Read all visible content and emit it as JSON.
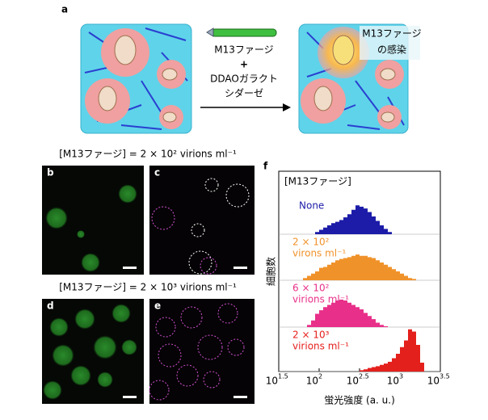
{
  "panel_a": {
    "letter": "a",
    "reagent_line1": "M13ファージ",
    "plus": "+",
    "reagent_line2": "DDAOガラクト",
    "reagent_line3": "シダーゼ",
    "infection_line1": "M13ファージ",
    "infection_line2": "の感染"
  },
  "panels_bc": {
    "title": "[M13ファージ] = 2 × 10² virions ml⁻¹",
    "letter_left": "b",
    "letter_right": "c"
  },
  "panels_de": {
    "title": "[M13ファージ] = 2 × 10³ virions ml⁻¹",
    "letter_left": "d",
    "letter_right": "e"
  },
  "chart_data": {
    "type": "histogram",
    "letter": "f",
    "legend_title": "[M13ファージ]",
    "x_label": "蛍光強度 (a. u.)",
    "y_label": "細胞数",
    "log_scale_x": true,
    "xlim": [
      1.5,
      3.5
    ],
    "xticks": [
      {
        "value": 1.5,
        "label": "10",
        "exponent": "1.5"
      },
      {
        "value": 2,
        "label": "10",
        "exponent": "2"
      },
      {
        "value": 2.5,
        "label": "10",
        "exponent": "2.5"
      },
      {
        "value": 3,
        "label": "10",
        "exponent": "3"
      },
      {
        "value": 3.5,
        "label": "10",
        "exponent": "3.5"
      }
    ],
    "bins": [
      1.8,
      1.85,
      1.9,
      1.95,
      2.0,
      2.05,
      2.1,
      2.15,
      2.2,
      2.25,
      2.3,
      2.35,
      2.4,
      2.45,
      2.5,
      2.55,
      2.6,
      2.65,
      2.7,
      2.75,
      2.8,
      2.85,
      2.9,
      2.95,
      3.0,
      3.05,
      3.1,
      3.15,
      3.2,
      3.25,
      3.3,
      3.35,
      3.4
    ],
    "series": [
      {
        "name": [
          "None"
        ],
        "color": "#1c1ca8",
        "values": [
          0,
          0,
          0,
          5,
          10,
          15,
          20,
          25,
          28,
          32,
          38,
          45,
          55,
          65,
          62,
          58,
          50,
          40,
          30,
          20,
          12,
          5,
          0,
          0,
          0,
          0,
          0,
          0,
          0,
          0,
          0,
          0
        ]
      },
      {
        "name": [
          "2 × 10²",
          "virons ml⁻¹"
        ],
        "color": "#f0922a",
        "values": [
          5,
          10,
          15,
          20,
          28,
          30,
          35,
          40,
          45,
          48,
          50,
          52,
          55,
          58,
          55,
          55,
          52,
          50,
          45,
          40,
          35,
          30,
          25,
          20,
          15,
          10,
          5,
          3,
          0,
          0,
          0,
          0
        ]
      },
      {
        "name": [
          "6 × 10²",
          "virions ml⁻¹"
        ],
        "color": "#e8308a",
        "values": [
          0,
          5,
          15,
          30,
          38,
          45,
          50,
          55,
          60,
          62,
          60,
          55,
          50,
          45,
          40,
          32,
          25,
          18,
          10,
          5,
          2,
          0,
          0,
          0,
          0,
          0,
          0,
          0,
          0,
          0,
          0,
          0
        ]
      },
      {
        "name": [
          "2 × 10³",
          "virions ml⁻¹"
        ],
        "color": "#e4201c",
        "values": [
          0,
          0,
          0,
          0,
          0,
          0,
          0,
          0,
          0,
          0,
          0,
          0,
          0,
          0,
          3,
          5,
          8,
          10,
          12,
          15,
          18,
          22,
          30,
          40,
          55,
          70,
          95,
          90,
          60,
          20,
          0,
          0
        ]
      }
    ]
  }
}
